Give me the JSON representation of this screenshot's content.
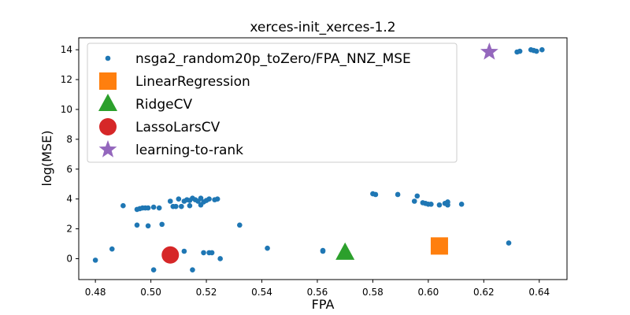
{
  "chart_data": {
    "type": "scatter",
    "title": "xerces-init_xerces-1.2",
    "xlabel": "FPA",
    "ylabel": "log(MSE)",
    "xlim": [
      0.474,
      0.65
    ],
    "ylim": [
      -1.4,
      14.8
    ],
    "xticks": [
      "0.48",
      "0.50",
      "0.52",
      "0.54",
      "0.56",
      "0.58",
      "0.60",
      "0.62",
      "0.64"
    ],
    "yticks": [
      "0",
      "2",
      "4",
      "6",
      "8",
      "10",
      "12",
      "14"
    ],
    "legend_position": "upper-left",
    "series": [
      {
        "name": "nsga2_random20p_toZero/FPA_NNZ_MSE",
        "marker": "circle-small",
        "color": "#1f77b4",
        "points": [
          [
            0.48,
            -0.1
          ],
          [
            0.486,
            0.65
          ],
          [
            0.49,
            3.55
          ],
          [
            0.495,
            2.25
          ],
          [
            0.495,
            3.3
          ],
          [
            0.496,
            3.35
          ],
          [
            0.497,
            3.4
          ],
          [
            0.498,
            3.4
          ],
          [
            0.499,
            3.4
          ],
          [
            0.499,
            2.2
          ],
          [
            0.501,
            3.45
          ],
          [
            0.501,
            -0.75
          ],
          [
            0.503,
            3.4
          ],
          [
            0.504,
            2.3
          ],
          [
            0.507,
            3.85
          ],
          [
            0.508,
            3.5
          ],
          [
            0.509,
            3.5
          ],
          [
            0.51,
            4.0
          ],
          [
            0.511,
            3.5
          ],
          [
            0.512,
            0.5
          ],
          [
            0.512,
            3.85
          ],
          [
            0.513,
            3.95
          ],
          [
            0.514,
            3.55
          ],
          [
            0.514,
            3.9
          ],
          [
            0.515,
            4.05
          ],
          [
            0.515,
            -0.75
          ],
          [
            0.516,
            3.95
          ],
          [
            0.517,
            3.85
          ],
          [
            0.518,
            3.6
          ],
          [
            0.518,
            4.05
          ],
          [
            0.519,
            3.8
          ],
          [
            0.519,
            0.4
          ],
          [
            0.52,
            3.9
          ],
          [
            0.521,
            4.0
          ],
          [
            0.521,
            0.4
          ],
          [
            0.522,
            0.4
          ],
          [
            0.523,
            3.95
          ],
          [
            0.524,
            4.0
          ],
          [
            0.525,
            0.0
          ],
          [
            0.532,
            2.25
          ],
          [
            0.542,
            0.7
          ],
          [
            0.562,
            0.5
          ],
          [
            0.562,
            0.55
          ],
          [
            0.58,
            4.35
          ],
          [
            0.581,
            4.3
          ],
          [
            0.589,
            4.3
          ],
          [
            0.595,
            3.85
          ],
          [
            0.596,
            4.2
          ],
          [
            0.598,
            3.75
          ],
          [
            0.599,
            3.7
          ],
          [
            0.6,
            3.65
          ],
          [
            0.601,
            3.65
          ],
          [
            0.604,
            3.6
          ],
          [
            0.606,
            3.7
          ],
          [
            0.607,
            3.6
          ],
          [
            0.607,
            3.8
          ],
          [
            0.612,
            3.65
          ],
          [
            0.629,
            1.05
          ],
          [
            0.632,
            13.85
          ],
          [
            0.633,
            13.9
          ],
          [
            0.637,
            14.0
          ],
          [
            0.638,
            13.95
          ],
          [
            0.639,
            13.9
          ],
          [
            0.641,
            14.0
          ]
        ]
      },
      {
        "name": "LinearRegression",
        "marker": "square",
        "color": "#ff7f0e",
        "points": [
          [
            0.604,
            0.85
          ]
        ]
      },
      {
        "name": "RidgeCV",
        "marker": "triangle",
        "color": "#2ca02c",
        "points": [
          [
            0.57,
            0.4
          ]
        ]
      },
      {
        "name": "LassoLarsCV",
        "marker": "circle-large",
        "color": "#d62728",
        "points": [
          [
            0.507,
            0.25
          ]
        ]
      },
      {
        "name": "learning-to-rank",
        "marker": "star",
        "color": "#9467bd",
        "points": [
          [
            0.622,
            13.85
          ]
        ]
      }
    ]
  }
}
